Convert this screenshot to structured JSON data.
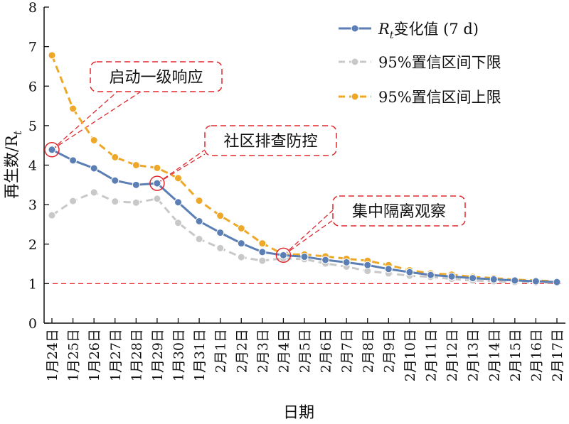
{
  "chart_data": {
    "type": "line",
    "xlabel": "日期",
    "ylabel": "再生数/R",
    "ylabel_subscript": "t",
    "ylim": [
      0,
      8
    ],
    "yticks": [
      "0",
      "1",
      "2",
      "3",
      "4",
      "5",
      "6",
      "7",
      "8"
    ],
    "categories": [
      "1月24日",
      "1月25日",
      "1月26日",
      "1月27日",
      "1月28日",
      "1月29日",
      "1月30日",
      "1月31日",
      "2月1日",
      "2月2日",
      "2月3日",
      "2月4日",
      "2月5日",
      "2月6日",
      "2月7日",
      "2月8日",
      "2月9日",
      "2月10日",
      "2月11日",
      "2月12日",
      "2月13日",
      "2月14日",
      "2月15日",
      "2月16日",
      "2月17日"
    ],
    "reference_line": {
      "y": 1,
      "color": "#e0282e",
      "style": "dashed"
    },
    "series": [
      {
        "name": "R",
        "name_subscript": "t",
        "name_suffix": "变化值 (7 d)",
        "color": "#5b7fb5",
        "style": "solid",
        "values": [
          4.39,
          4.12,
          3.92,
          3.61,
          3.5,
          3.54,
          3.06,
          2.58,
          2.29,
          2.02,
          1.8,
          1.72,
          1.68,
          1.6,
          1.54,
          1.47,
          1.37,
          1.29,
          1.22,
          1.18,
          1.14,
          1.11,
          1.08,
          1.06,
          1.04
        ]
      },
      {
        "name": "95%置信区间下限",
        "color": "#c8c8c8",
        "style": "dashed",
        "values": [
          2.73,
          3.09,
          3.31,
          3.08,
          3.05,
          3.15,
          2.54,
          2.13,
          1.9,
          1.67,
          1.58,
          1.64,
          1.62,
          1.51,
          1.43,
          1.32,
          1.26,
          1.2,
          1.17,
          1.12,
          1.08,
          1.06,
          1.04,
          1.03,
          1.02
        ]
      },
      {
        "name": "95%置信区间上限",
        "color": "#eea829",
        "style": "dashed",
        "values": [
          6.78,
          5.43,
          4.63,
          4.2,
          4.0,
          3.93,
          3.67,
          3.1,
          2.72,
          2.4,
          2.02,
          1.74,
          1.74,
          1.69,
          1.63,
          1.58,
          1.47,
          1.34,
          1.26,
          1.23,
          1.17,
          1.14,
          1.1,
          1.08,
          1.06
        ]
      }
    ],
    "legend": {
      "placement": "top-right"
    },
    "annotations": [
      {
        "text": "启动一级响应",
        "x_index": 0,
        "y": 4.39
      },
      {
        "text": "社区排查防控",
        "x_index": 5,
        "y": 3.54
      },
      {
        "text": "集中隔离观察",
        "x_index": 11,
        "y": 1.72
      }
    ],
    "grid": false
  }
}
